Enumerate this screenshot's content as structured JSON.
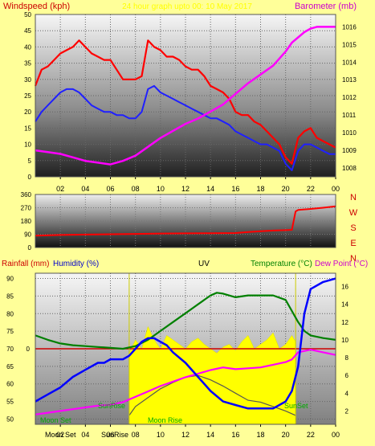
{
  "colors": {
    "background": "#ffff99",
    "wind_gust": "#ff0000",
    "wind_avg": "#2020ff",
    "barometer": "#ff00ff",
    "direction": "#ff0000",
    "rainfall": "#cc0000",
    "humidity": "#0000ff",
    "uv": "#ffff00",
    "temperature": "#008000",
    "dew_point": "#ff00ff",
    "sun_moon": "#00aa00",
    "direction_letters": "#cc0000"
  },
  "header": {
    "title": "24 hour graph upto 00: 10 May 2017"
  },
  "chart_data": [
    {
      "type": "line",
      "name": "wind-barometer",
      "left_label": "Windspeed (kph)",
      "right_label": "Barometer (mb)",
      "x_ticks": [
        "02",
        "04",
        "06",
        "08",
        "10",
        "12",
        "14",
        "16",
        "18",
        "20",
        "22",
        "00"
      ],
      "y_left": {
        "ticks": [
          0,
          5,
          10,
          15,
          20,
          25,
          30,
          35,
          40,
          45,
          50
        ],
        "range": [
          0,
          50
        ]
      },
      "y_right": {
        "ticks": [
          1008,
          1009,
          1010,
          1011,
          1012,
          1013,
          1014,
          1015,
          1016
        ],
        "range": [
          1007.5,
          1016.7
        ]
      },
      "x_range": [
        0,
        24
      ],
      "series": [
        {
          "key": "gust",
          "x": [
            0,
            0.5,
            1,
            1.5,
            2,
            2.5,
            3,
            3.5,
            4,
            4.5,
            5,
            5.5,
            6,
            6.5,
            7,
            7.5,
            8,
            8.5,
            9,
            9.5,
            10,
            10.5,
            11,
            11.5,
            12,
            12.5,
            13,
            13.5,
            14,
            14.5,
            15,
            15.5,
            16,
            16.5,
            17,
            17.5,
            18,
            18.5,
            19,
            19.5,
            20,
            20.5,
            21,
            21.5,
            22,
            22.5,
            23,
            23.5,
            24
          ],
          "y": [
            28,
            33,
            34,
            36,
            38,
            39,
            40,
            42,
            40,
            38,
            37,
            36,
            36,
            33,
            30,
            30,
            30,
            31,
            42,
            40,
            39,
            37,
            37,
            36,
            34,
            33,
            33,
            31,
            28,
            27,
            26,
            24,
            20,
            19,
            19,
            17,
            16,
            14,
            12,
            10,
            6,
            4,
            12,
            14,
            15,
            12,
            11,
            10,
            9
          ]
        },
        {
          "key": "average",
          "x": [
            0,
            0.5,
            1,
            1.5,
            2,
            2.5,
            3,
            3.5,
            4,
            4.5,
            5,
            5.5,
            6,
            6.5,
            7,
            7.5,
            8,
            8.5,
            9,
            9.5,
            10,
            10.5,
            11,
            11.5,
            12,
            12.5,
            13,
            13.5,
            14,
            14.5,
            15,
            15.5,
            16,
            16.5,
            17,
            17.5,
            18,
            18.5,
            19,
            19.5,
            20,
            20.5,
            21,
            21.5,
            22,
            22.5,
            23,
            23.5,
            24
          ],
          "y": [
            17,
            20,
            22,
            24,
            26,
            27,
            27,
            26,
            24,
            22,
            21,
            20,
            20,
            19,
            19,
            18,
            18,
            20,
            27,
            28,
            26,
            25,
            24,
            23,
            22,
            21,
            20,
            19,
            18,
            18,
            17,
            16,
            14,
            13,
            12,
            11,
            10,
            10,
            9,
            8,
            4,
            2,
            8,
            10,
            10,
            9,
            8,
            7,
            7
          ]
        },
        {
          "key": "barometer",
          "x": [
            0,
            1,
            2,
            3,
            4,
            5,
            6,
            7,
            8,
            9,
            10,
            11,
            12,
            13,
            14,
            15,
            16,
            17,
            18,
            19,
            19.5,
            20,
            20.5,
            21,
            21.5,
            22,
            22.5,
            23,
            23.5,
            24
          ],
          "y": [
            1009.0,
            1008.9,
            1008.8,
            1008.6,
            1008.4,
            1008.3,
            1008.2,
            1008.4,
            1008.7,
            1009.2,
            1009.7,
            1010.1,
            1010.5,
            1010.8,
            1011.2,
            1011.6,
            1012.2,
            1012.8,
            1013.3,
            1013.8,
            1014.2,
            1014.6,
            1015.1,
            1015.4,
            1015.7,
            1015.9,
            1016.0,
            1016.0,
            1016.0,
            1016.0
          ]
        }
      ]
    },
    {
      "type": "line",
      "name": "wind-direction",
      "y_ticks": [
        0,
        90,
        180,
        270,
        360
      ],
      "y_range": [
        0,
        360
      ],
      "compass_letters": [
        "N",
        "W",
        "S",
        "E",
        "N"
      ],
      "x_range": [
        0,
        24
      ],
      "series": [
        {
          "key": "direction",
          "x": [
            0,
            2,
            4,
            6,
            8,
            10,
            12,
            14,
            16,
            17,
            18,
            19,
            20,
            20.5,
            20.8,
            21,
            22,
            23,
            24
          ],
          "y": [
            80,
            85,
            88,
            90,
            92,
            95,
            96,
            97,
            98,
            105,
            110,
            115,
            118,
            120,
            245,
            255,
            262,
            270,
            280
          ]
        }
      ]
    },
    {
      "type": "line",
      "name": "rain-humidity-uv-temp",
      "labels": {
        "rainfall": "Rainfall (mm)",
        "humidity": "Humidity (%)",
        "uv": "UV",
        "temperature": "Temperature (°C)",
        "dew_point": "Dew Point (°C)"
      },
      "x_ticks": [
        "02",
        "04",
        "06",
        "08",
        "10",
        "12",
        "14",
        "16",
        "18",
        "20",
        "22",
        "00"
      ],
      "y_left": {
        "ticks": [
          50,
          55,
          60,
          65,
          70,
          75,
          80,
          85,
          90
        ],
        "range": [
          48.5,
          91.5
        ]
      },
      "y_right": {
        "ticks": [
          2,
          4,
          6,
          8,
          10,
          12,
          14,
          16
        ],
        "range": [
          0.5,
          17.5
        ]
      },
      "rain_axis_tick": "0",
      "x_range": [
        0,
        24
      ],
      "markers": {
        "sun_rise": "SunRise",
        "sun_set": "SunSet",
        "moon_rise": "Moon Rise",
        "moon_set": "Moon Set"
      },
      "series": [
        {
          "key": "humidity",
          "x": [
            0,
            0.5,
            1,
            2,
            3,
            4,
            5,
            5.5,
            6,
            7,
            7.5,
            8,
            8.5,
            9,
            9.5,
            10,
            10.5,
            11,
            12,
            13,
            14,
            15,
            16,
            17,
            18,
            19,
            20,
            20.5,
            21,
            21.5,
            22,
            23,
            24
          ],
          "y": [
            55,
            56,
            57,
            59,
            62,
            64,
            66,
            66,
            67,
            67,
            68,
            70,
            72,
            73,
            73,
            72,
            71,
            69,
            66,
            62,
            58,
            55,
            54,
            53,
            53,
            53,
            55,
            58,
            65,
            80,
            87,
            89,
            90
          ]
        },
        {
          "key": "temperature",
          "x": [
            0,
            1,
            2,
            3,
            4,
            5,
            6,
            7,
            8,
            9,
            10,
            11,
            12,
            13,
            14,
            14.5,
            15,
            16,
            17,
            18,
            19,
            20,
            21,
            21.5,
            22,
            23,
            24
          ],
          "y": [
            10.5,
            10.0,
            9.6,
            9.4,
            9.3,
            9.2,
            9.1,
            9.0,
            9.3,
            10.0,
            11.0,
            12.0,
            13.0,
            14.0,
            15.0,
            15.3,
            15.2,
            14.8,
            15.0,
            15.0,
            15.0,
            14.5,
            12.0,
            11.0,
            10.5,
            10.2,
            10.0
          ]
        },
        {
          "key": "dew_point",
          "x": [
            0,
            1,
            2,
            3,
            4,
            5,
            6,
            7,
            8,
            9,
            10,
            11,
            12,
            13,
            14,
            15,
            16,
            17,
            18,
            19,
            20,
            20.5,
            21,
            22,
            23,
            24
          ],
          "y": [
            1.6,
            1.8,
            2.0,
            2.2,
            2.4,
            2.6,
            2.7,
            3.0,
            3.6,
            4.2,
            4.8,
            5.3,
            5.8,
            6.2,
            6.6,
            6.9,
            6.7,
            6.8,
            6.9,
            7.2,
            7.5,
            7.8,
            8.6,
            8.9,
            8.6,
            8.3
          ]
        },
        {
          "key": "uv",
          "x": [
            7.5,
            8,
            8.5,
            9,
            9.5,
            10,
            10.5,
            11,
            11.5,
            12,
            12.5,
            13,
            13.5,
            14,
            14.5,
            15,
            15.5,
            16,
            16.5,
            17,
            17.5,
            18,
            18.5,
            19,
            19.5,
            20,
            20.5,
            20.8
          ],
          "y": [
            8.5,
            10.0,
            9.0,
            11.5,
            10.0,
            9.0,
            10.5,
            10.0,
            9.5,
            9.0,
            9.8,
            10.2,
            9.5,
            9.0,
            8.5,
            9.2,
            9.5,
            8.8,
            9.8,
            10.5,
            9.0,
            9.5,
            10.0,
            10.8,
            9.0,
            9.5,
            10.5,
            9.8
          ]
        },
        {
          "key": "solar",
          "x": [
            7.5,
            8,
            9,
            10,
            11,
            12,
            13,
            14,
            15,
            16,
            17,
            18,
            19,
            20,
            20.8
          ],
          "y": [
            1.5,
            2.5,
            3.5,
            4.5,
            5.2,
            5.8,
            6.0,
            5.5,
            4.8,
            4.0,
            3.2,
            3.0,
            2.5,
            2.0,
            1.5
          ]
        }
      ]
    }
  ]
}
